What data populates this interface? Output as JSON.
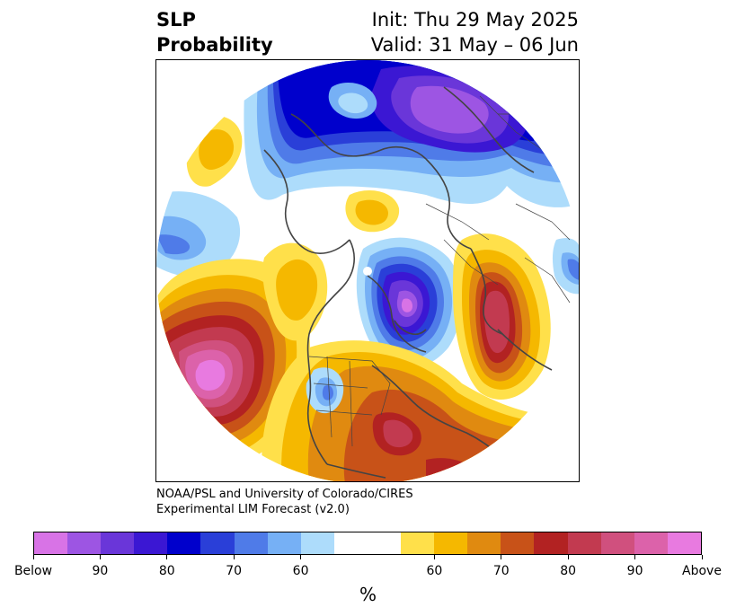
{
  "title": {
    "left_line1": "SLP",
    "left_line2": "Probability",
    "right_line1": "Init: Thu 29 May 2025",
    "right_line2": "Valid: 31 May – 06 Jun"
  },
  "credit": {
    "line1": "NOAA/PSL and University of Colorado/CIRES",
    "line2": "Experimental LIM Forecast (v2.0)"
  },
  "colorbar": {
    "unit_label": "%",
    "ticks": [
      "Below",
      "90",
      "80",
      "70",
      "60",
      "60",
      "70",
      "80",
      "90",
      "Above"
    ],
    "colors": [
      "#d873e6",
      "#9d55e3",
      "#6a36d9",
      "#3b17d3",
      "#0000cc",
      "#2a3fd8",
      "#4f7be8",
      "#76b0f5",
      "#addcfb",
      "#ffffff",
      "#ffffff",
      "#ffe04a",
      "#f5b800",
      "#e08a10",
      "#c85218",
      "#b22222",
      "#c23a50",
      "#d0507e",
      "#dc62aa",
      "#e87ae0"
    ]
  },
  "map": {
    "projection": "north-polar-stereographic",
    "field": "SLP probability",
    "high_colors": {
      "p60": "#ffe04a",
      "p65": "#f5b800",
      "p70": "#e08a10",
      "p75": "#c85218",
      "p80": "#b22222",
      "p85": "#c23a50",
      "p90": "#d0507e",
      "p95": "#dc62aa",
      "above": "#e87ae0"
    },
    "low_colors": {
      "p60": "#addcfb",
      "p65": "#76b0f5",
      "p70": "#4f7be8",
      "p75": "#2a3fd8",
      "p80": "#0000cc",
      "p85": "#3b17d3",
      "p90": "#6a36d9",
      "p95": "#9d55e3",
      "below": "#d873e6"
    },
    "coastline_color": "#444444"
  }
}
